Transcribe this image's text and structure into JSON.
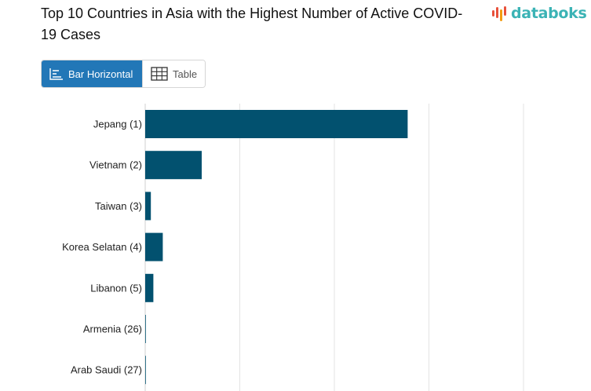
{
  "title": "Top 10 Countries in Asia with the Highest Number of Active COVID-19 Cases",
  "brand": {
    "name": "databoks",
    "colors": [
      "#e8513b",
      "#f39c12",
      "#3bb3b5"
    ]
  },
  "view_toggle": {
    "bar_label": "Bar Horizontal",
    "table_label": "Table",
    "active": "bar"
  },
  "colors": {
    "bar": "#02516f",
    "grid": "#e3e3e3",
    "active_button": "#2277b7"
  },
  "chart_data": {
    "type": "bar",
    "orientation": "horizontal",
    "categories": [
      "Jepang (1)",
      "Vietnam (2)",
      "Taiwan (3)",
      "Korea Selatan (4)",
      "Libanon (5)",
      "Armenia (26)",
      "Arab Saudi (27)"
    ],
    "values": [
      2090,
      450,
      45,
      140,
      65,
      4,
      4
    ],
    "grid": true
  }
}
